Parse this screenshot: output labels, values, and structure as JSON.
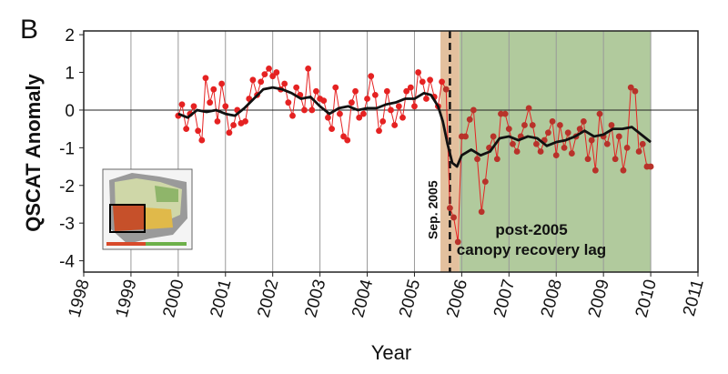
{
  "panel_label": "B",
  "chart_data": {
    "type": "line",
    "xlabel": "Year",
    "ylabel": "QSCAT Anomaly",
    "xlim": [
      1998,
      2011
    ],
    "ylim": [
      -4.3,
      2.1
    ],
    "x_ticks": [
      "1998",
      "1999",
      "2000",
      "2001",
      "2002",
      "2003",
      "2004",
      "2005",
      "2006",
      "2007",
      "2008",
      "2009",
      "2010",
      "2011"
    ],
    "y_ticks": [
      "2",
      "1",
      "0",
      "-1",
      "-2",
      "-3",
      "-4"
    ],
    "grid": "vertical",
    "zero_line": 0,
    "event_line": {
      "x": 2005.75,
      "label": "Sep. 2005"
    },
    "event_band": {
      "x_range": [
        2005.55,
        2005.95
      ],
      "color": "#e0b994"
    },
    "recovery_band": {
      "x_range": [
        2005.95,
        2010.0
      ],
      "color": "#a8c492"
    },
    "annotation": [
      "post-2005",
      "canopy recovery lag"
    ],
    "inset": "map of South America with drought-affected region outlined",
    "series": [
      {
        "style": "monthly points",
        "color": "#e52222",
        "x": [
          2000.0,
          2000.08,
          2000.17,
          2000.25,
          2000.33,
          2000.42,
          2000.5,
          2000.58,
          2000.67,
          2000.75,
          2000.83,
          2000.92,
          2001.0,
          2001.08,
          2001.17,
          2001.25,
          2001.33,
          2001.42,
          2001.5,
          2001.58,
          2001.67,
          2001.75,
          2001.83,
          2001.92,
          2002.0,
          2002.08,
          2002.17,
          2002.25,
          2002.33,
          2002.42,
          2002.5,
          2002.58,
          2002.67,
          2002.75,
          2002.83,
          2002.92,
          2003.0,
          2003.08,
          2003.17,
          2003.25,
          2003.33,
          2003.42,
          2003.5,
          2003.58,
          2003.67,
          2003.75,
          2003.83,
          2003.92,
          2004.0,
          2004.08,
          2004.17,
          2004.25,
          2004.33,
          2004.42,
          2004.5,
          2004.58,
          2004.67,
          2004.75,
          2004.83,
          2004.92,
          2005.0,
          2005.08,
          2005.17,
          2005.25,
          2005.33,
          2005.42,
          2005.5,
          2005.58,
          2005.67,
          2005.75,
          2005.83,
          2005.92,
          2006.0,
          2006.08,
          2006.17,
          2006.25,
          2006.33,
          2006.42,
          2006.5,
          2006.58,
          2006.67,
          2006.75,
          2006.83,
          2006.92,
          2007.0,
          2007.08,
          2007.17,
          2007.25,
          2007.33,
          2007.42,
          2007.5,
          2007.58,
          2007.67,
          2007.75,
          2007.83,
          2007.92,
          2008.0,
          2008.08,
          2008.17,
          2008.25,
          2008.33,
          2008.42,
          2008.5,
          2008.58,
          2008.67,
          2008.75,
          2008.83,
          2008.92,
          2009.0,
          2009.08,
          2009.17,
          2009.25,
          2009.33,
          2009.42,
          2009.5,
          2009.58,
          2009.67,
          2009.75,
          2009.83,
          2009.92,
          2010.0
        ],
        "y": [
          -0.15,
          0.15,
          -0.5,
          -0.1,
          0.1,
          -0.55,
          -0.8,
          0.85,
          0.2,
          0.55,
          -0.3,
          0.7,
          0.1,
          -0.6,
          -0.4,
          0.0,
          -0.35,
          -0.3,
          0.3,
          0.8,
          0.4,
          0.75,
          0.95,
          1.1,
          0.9,
          1.0,
          0.55,
          0.7,
          0.2,
          -0.15,
          0.6,
          0.4,
          0.0,
          1.1,
          0.0,
          0.5,
          0.3,
          0.25,
          -0.2,
          -0.5,
          0.6,
          -0.1,
          -0.7,
          -0.8,
          0.2,
          0.5,
          -0.2,
          -0.1,
          0.3,
          0.9,
          0.4,
          -0.55,
          -0.3,
          0.5,
          0.0,
          -0.4,
          0.1,
          -0.2,
          0.5,
          0.6,
          0.1,
          1.0,
          0.75,
          0.3,
          0.8,
          0.35,
          0.1,
          0.75,
          0.55,
          -2.6,
          -2.85,
          -3.5,
          -0.7,
          -0.7,
          -0.25,
          0.0,
          -1.3,
          -2.7,
          -1.9,
          -1.0,
          -0.7,
          -1.3,
          -0.1,
          -0.1,
          -0.5,
          -0.9,
          -1.1,
          -0.7,
          -0.4,
          0.05,
          -0.4,
          -0.9,
          -1.1,
          -0.8,
          -0.6,
          -0.3,
          -1.2,
          -0.4,
          -1.0,
          -0.6,
          -1.15,
          -0.7,
          -0.5,
          -0.3,
          -1.3,
          -0.8,
          -1.6,
          -0.1,
          -0.7,
          -0.9,
          -0.4,
          -1.3,
          -0.7,
          -1.6,
          -1.0,
          0.6,
          0.5,
          -1.1,
          -0.9,
          -1.5,
          -1.5
        ]
      },
      {
        "style": "smoothed",
        "color": "#111111",
        "x": [
          2000.0,
          2000.2,
          2000.4,
          2000.6,
          2000.8,
          2001.0,
          2001.2,
          2001.4,
          2001.6,
          2001.8,
          2002.0,
          2002.2,
          2002.4,
          2002.6,
          2002.8,
          2003.0,
          2003.2,
          2003.4,
          2003.6,
          2003.8,
          2004.0,
          2004.2,
          2004.4,
          2004.6,
          2004.8,
          2005.0,
          2005.2,
          2005.35,
          2005.5,
          2005.6,
          2005.7,
          2005.8,
          2005.9,
          2006.0,
          2006.2,
          2006.4,
          2006.6,
          2006.8,
          2007.0,
          2007.2,
          2007.4,
          2007.6,
          2007.8,
          2008.0,
          2008.2,
          2008.4,
          2008.6,
          2008.8,
          2009.0,
          2009.2,
          2009.4,
          2009.6,
          2009.8,
          2010.0
        ],
        "y": [
          -0.1,
          -0.2,
          0.0,
          -0.05,
          0.0,
          -0.1,
          -0.15,
          0.05,
          0.3,
          0.55,
          0.6,
          0.55,
          0.45,
          0.3,
          0.35,
          0.1,
          -0.1,
          0.05,
          0.1,
          0.0,
          0.05,
          0.05,
          0.15,
          0.2,
          0.3,
          0.3,
          0.45,
          0.4,
          0.1,
          -0.3,
          -0.9,
          -1.4,
          -1.5,
          -1.2,
          -1.05,
          -1.2,
          -1.1,
          -0.75,
          -0.7,
          -0.8,
          -0.7,
          -0.75,
          -0.95,
          -0.85,
          -0.8,
          -0.7,
          -0.55,
          -0.7,
          -0.65,
          -0.5,
          -0.5,
          -0.45,
          -0.65,
          -0.85
        ]
      }
    ]
  }
}
